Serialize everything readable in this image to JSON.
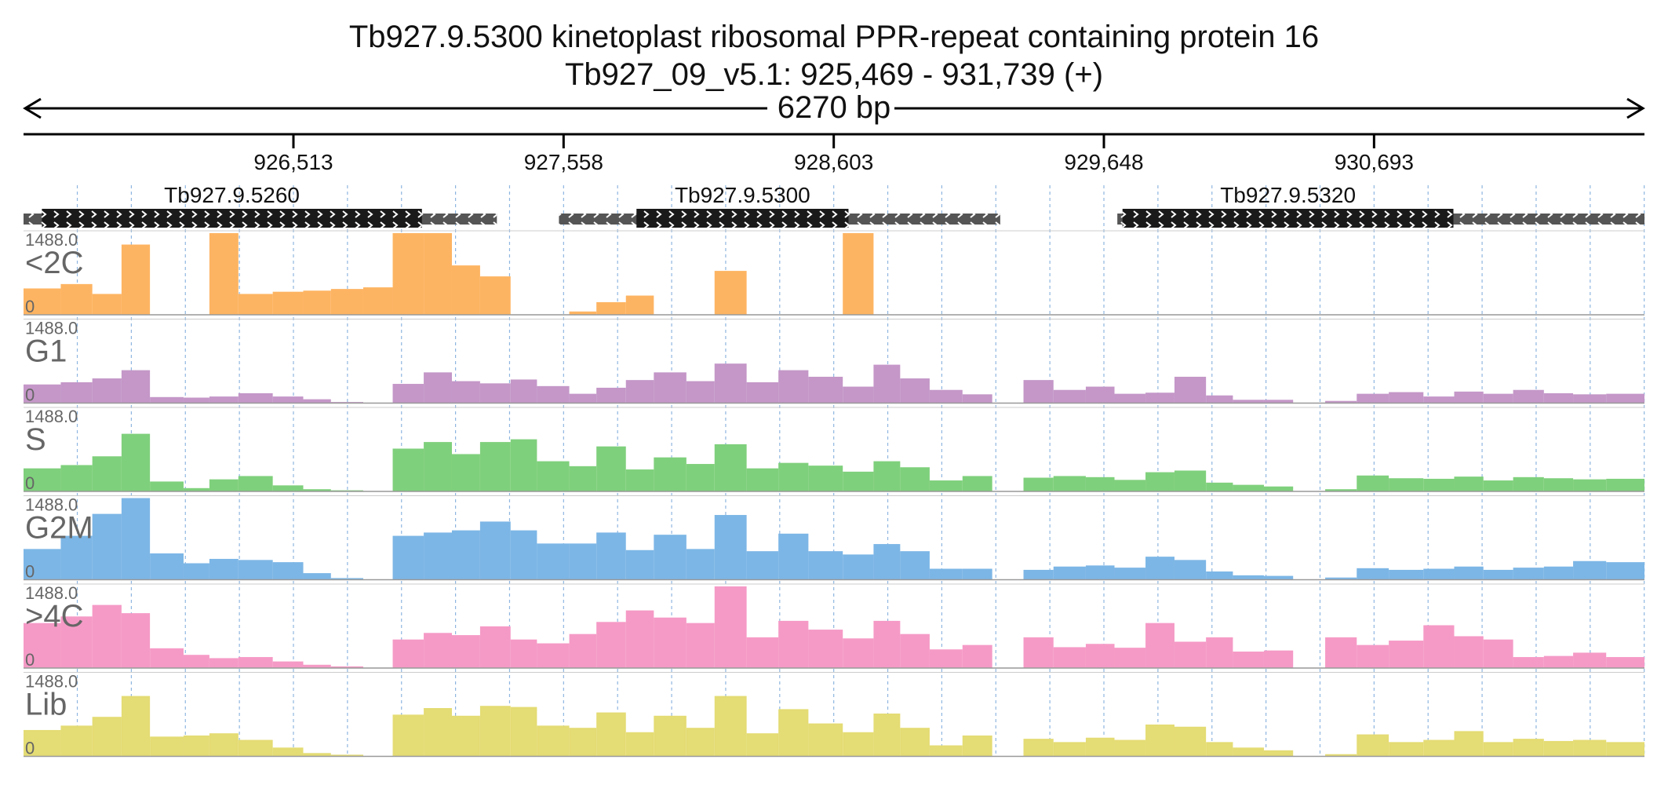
{
  "header": {
    "title_line1": "Tb927.9.5300  kinetoplast ribosomal PPR-repeat containing protein 16",
    "title_line2": "Tb927_09_v5.1: 925,469 - 931,739 (+)",
    "span_label": "6270 bp"
  },
  "chart_data": {
    "type": "bar",
    "title": "Tb927.9.5300  kinetoplast ribosomal PPR-repeat containing protein 16",
    "subtitle": "Tb927_09_v5.1: 925,469 - 931,739 (+)",
    "xlim": [
      925469,
      931739
    ],
    "ylim": [
      0,
      1488
    ],
    "x_ticks": [
      926513,
      927558,
      928603,
      929648,
      930693
    ],
    "x_tick_labels": [
      "926,513",
      "927,558",
      "928,603",
      "929,648",
      "930,693"
    ],
    "grid_x": true,
    "genes": [
      {
        "name": "Tb927.9.5260",
        "start": 925469,
        "end": 927300,
        "cds_start": 925540,
        "cds_end": 927010
      },
      {
        "name": "Tb927.9.5300",
        "start": 927540,
        "end": 929247,
        "cds_start": 927840,
        "cds_end": 928660
      },
      {
        "name": "Tb927.9.5320",
        "start": 929700,
        "end": 931739,
        "cds_start": 929720,
        "cds_end": 931000
      }
    ],
    "bin_starts": [
      925469,
      925613,
      925735,
      925848,
      925958,
      926088,
      926188,
      926300,
      926433,
      926551,
      926658,
      926783,
      926897,
      927017,
      927126,
      927235,
      927353,
      927455,
      927580,
      927685,
      927799,
      927907,
      928033,
      928142,
      928266,
      928389,
      928505,
      928638,
      928757,
      928860,
      928974,
      929101,
      929216,
      929337,
      929453,
      929578,
      929689,
      929809,
      929921,
      930043,
      930147,
      930267,
      930380,
      930504,
      930626,
      930750,
      930884,
      931003,
      931116,
      931231,
      931350,
      931463,
      931591,
      931739
    ],
    "bin_starts_note_free": true,
    "series": [
      {
        "name": "<2C",
        "color": "#fdb462",
        "max_label": "1488.0",
        "min_label": "0",
        "values": [
          480,
          560,
          380,
          1280,
          0,
          0,
          1488,
          380,
          420,
          440,
          470,
          500,
          1488,
          1488,
          900,
          700,
          0,
          0,
          60,
          230,
          350,
          0,
          0,
          800,
          0,
          0,
          0,
          1488,
          0,
          0,
          0,
          0,
          0,
          0,
          0,
          0,
          0,
          0,
          0,
          0,
          0,
          0,
          0,
          0,
          0,
          0,
          0,
          0,
          0,
          0,
          0,
          0,
          0
        ]
      },
      {
        "name": "G1",
        "color": "#c497c8",
        "max_label": "1488.0",
        "min_label": "0",
        "values": [
          340,
          380,
          450,
          600,
          110,
          100,
          120,
          180,
          120,
          70,
          20,
          0,
          350,
          560,
          400,
          360,
          430,
          310,
          170,
          280,
          420,
          560,
          400,
          720,
          380,
          600,
          480,
          300,
          700,
          450,
          240,
          160,
          0,
          420,
          240,
          300,
          170,
          190,
          480,
          140,
          60,
          60,
          0,
          40,
          170,
          200,
          120,
          210,
          170,
          240,
          180,
          160,
          170
        ]
      },
      {
        "name": "S",
        "color": "#7fd07c",
        "max_label": "1488.0",
        "min_label": "0",
        "values": [
          420,
          480,
          640,
          1050,
          180,
          60,
          220,
          280,
          110,
          40,
          20,
          0,
          780,
          900,
          680,
          900,
          950,
          550,
          460,
          820,
          400,
          620,
          500,
          860,
          420,
          520,
          470,
          360,
          550,
          440,
          200,
          280,
          0,
          250,
          280,
          260,
          210,
          350,
          380,
          160,
          120,
          90,
          0,
          40,
          290,
          240,
          230,
          270,
          200,
          260,
          240,
          220,
          230
        ]
      },
      {
        "name": "G2M",
        "color": "#7cb6e6",
        "max_label": "1488.0",
        "min_label": "0",
        "values": [
          560,
          800,
          1200,
          1488,
          480,
          300,
          380,
          360,
          320,
          120,
          30,
          0,
          800,
          860,
          900,
          1060,
          900,
          660,
          660,
          860,
          540,
          820,
          560,
          1180,
          520,
          840,
          520,
          460,
          650,
          520,
          200,
          200,
          0,
          180,
          240,
          260,
          220,
          420,
          360,
          150,
          80,
          70,
          0,
          40,
          210,
          180,
          200,
          240,
          180,
          220,
          240,
          340,
          320
        ]
      },
      {
        "name": ">4C",
        "color": "#f59ac6",
        "max_label": "1488.0",
        "min_label": "0",
        "values": [
          820,
          940,
          1150,
          1000,
          360,
          240,
          180,
          200,
          120,
          60,
          30,
          0,
          520,
          640,
          600,
          760,
          520,
          450,
          620,
          840,
          1050,
          920,
          820,
          1488,
          560,
          860,
          700,
          540,
          860,
          620,
          340,
          420,
          0,
          560,
          380,
          440,
          370,
          820,
          480,
          560,
          300,
          320,
          0,
          560,
          420,
          500,
          780,
          580,
          520,
          200,
          220,
          280,
          200
        ]
      },
      {
        "name": "Lib",
        "color": "#e4dc74",
        "max_label": "1488.0",
        "min_label": "0",
        "values": [
          480,
          560,
          720,
          1100,
          360,
          380,
          420,
          300,
          160,
          60,
          30,
          0,
          760,
          880,
          740,
          920,
          900,
          560,
          520,
          800,
          440,
          740,
          520,
          1100,
          420,
          860,
          600,
          440,
          780,
          520,
          200,
          380,
          0,
          320,
          260,
          340,
          300,
          580,
          540,
          260,
          160,
          110,
          0,
          40,
          400,
          260,
          300,
          460,
          260,
          320,
          280,
          300,
          260
        ]
      }
    ]
  }
}
